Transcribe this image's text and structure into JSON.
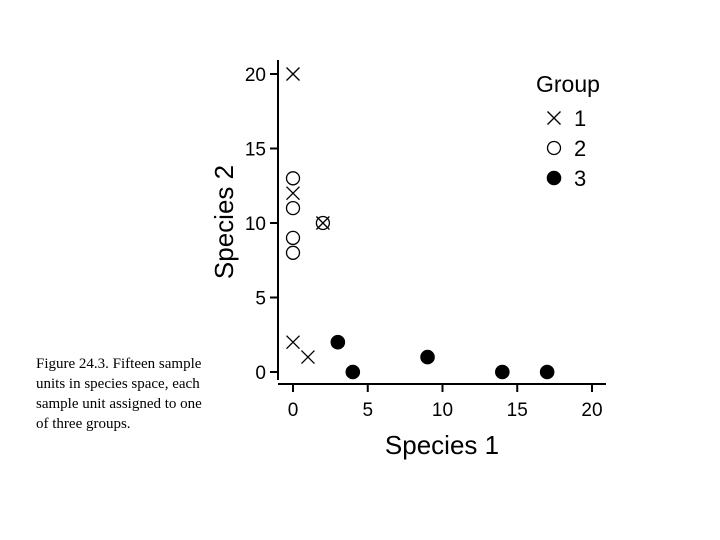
{
  "caption": "Figure 24.3.  Fifteen sample units in species space, each sample unit assigned to one of three groups.",
  "chart_data": {
    "type": "scatter",
    "xlabel": "Species 1",
    "ylabel": "Species 2",
    "xlim": [
      0,
      20
    ],
    "ylim": [
      0,
      20
    ],
    "xticks": [
      "0",
      "5",
      "10",
      "15",
      "20"
    ],
    "yticks": [
      "0",
      "5",
      "10",
      "15",
      "20"
    ],
    "grid": false,
    "legend": {
      "title": "Group",
      "placement": "top-right",
      "entries": [
        {
          "label": "1",
          "marker": "x"
        },
        {
          "label": "2",
          "marker": "open-circle"
        },
        {
          "label": "3",
          "marker": "filled-circle"
        }
      ]
    },
    "series": [
      {
        "name": "1",
        "marker": "x",
        "points": [
          [
            0,
            20
          ],
          [
            0,
            12
          ],
          [
            2,
            10
          ],
          [
            0,
            2
          ],
          [
            1,
            1
          ]
        ]
      },
      {
        "name": "2",
        "marker": "open-circle",
        "points": [
          [
            0,
            13
          ],
          [
            0,
            11
          ],
          [
            0,
            9
          ],
          [
            0,
            8
          ],
          [
            2,
            10
          ]
        ]
      },
      {
        "name": "3",
        "marker": "filled-circle",
        "points": [
          [
            3,
            2
          ],
          [
            4,
            0
          ],
          [
            9,
            1
          ],
          [
            14,
            0
          ],
          [
            17,
            0
          ]
        ]
      }
    ],
    "colors": {
      "marker": "#000000",
      "axis": "#000000"
    }
  }
}
